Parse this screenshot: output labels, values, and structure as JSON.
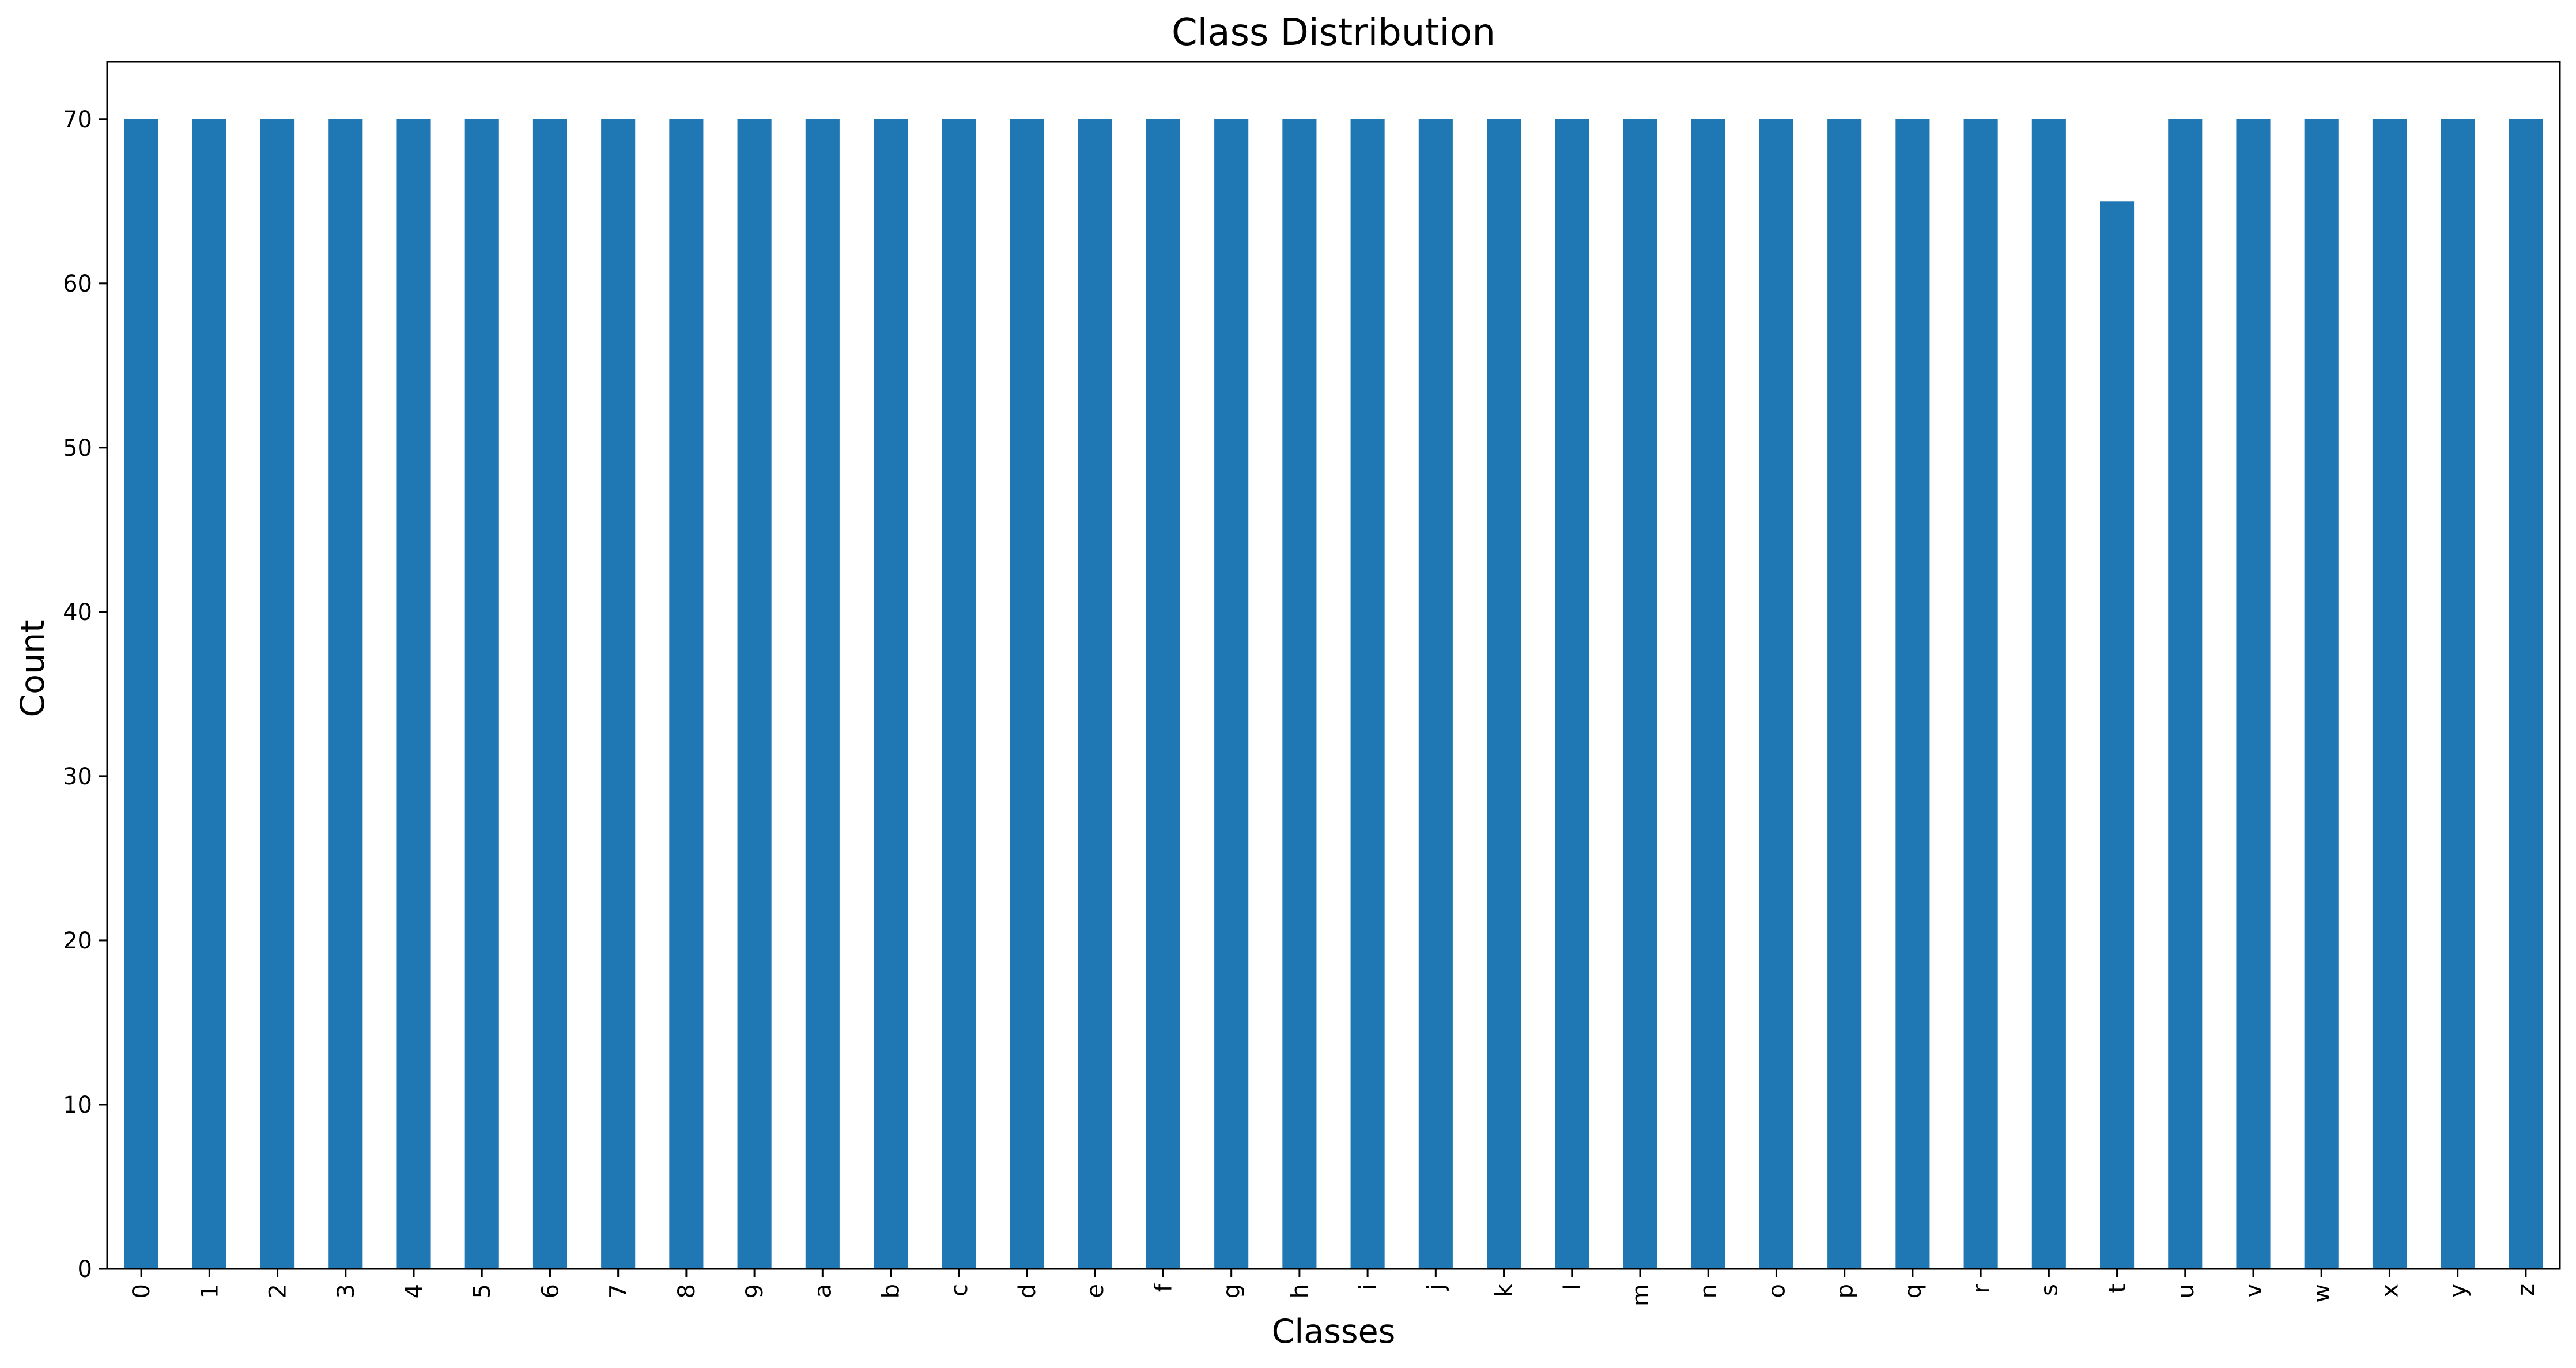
{
  "chart_data": {
    "type": "bar",
    "title": "Class Distribution",
    "xlabel": "Classes",
    "ylabel": "Count",
    "categories": [
      "0",
      "1",
      "2",
      "3",
      "4",
      "5",
      "6",
      "7",
      "8",
      "9",
      "a",
      "b",
      "c",
      "d",
      "e",
      "f",
      "g",
      "h",
      "i",
      "j",
      "k",
      "l",
      "m",
      "n",
      "o",
      "p",
      "q",
      "r",
      "s",
      "t",
      "u",
      "v",
      "w",
      "x",
      "y",
      "z"
    ],
    "values": [
      70,
      70,
      70,
      70,
      70,
      70,
      70,
      70,
      70,
      70,
      70,
      70,
      70,
      70,
      70,
      70,
      70,
      70,
      70,
      70,
      70,
      70,
      70,
      70,
      70,
      70,
      70,
      70,
      70,
      65,
      70,
      70,
      70,
      70,
      70,
      70
    ],
    "ylim": [
      0,
      73.5
    ],
    "yticks": [
      "0",
      "10",
      "20",
      "30",
      "40",
      "50",
      "60",
      "70"
    ],
    "grid": false,
    "legend": "none",
    "x_tick_rotation": "vertical",
    "bar_color": "#1f77b4"
  }
}
